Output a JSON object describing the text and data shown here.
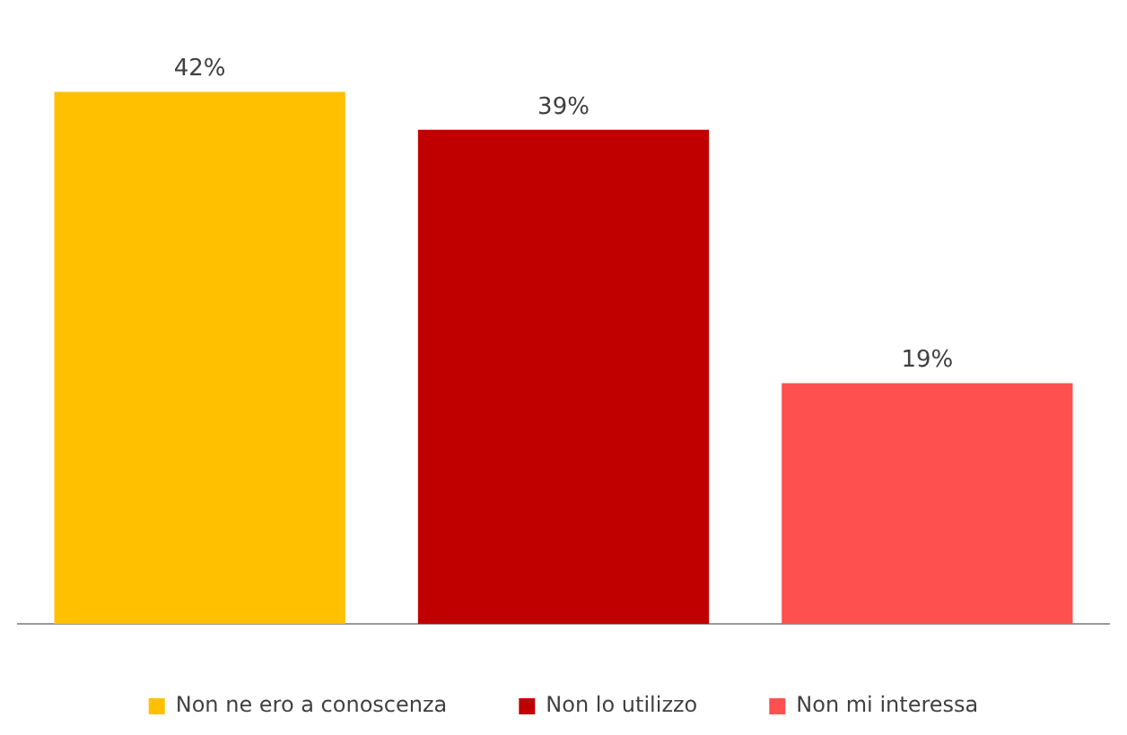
{
  "chart_data": {
    "type": "bar",
    "categories": [
      null
    ],
    "series": [
      {
        "name": "Non ne ero a conoscenza",
        "color": "#ffc000",
        "values": [
          42
        ],
        "value_labels": [
          "42%"
        ]
      },
      {
        "name": "Non lo utilizzo",
        "color": "#c00000",
        "values": [
          39
        ],
        "value_labels": [
          "39%"
        ]
      },
      {
        "name": "Non mi interessa",
        "color": "#ff5050",
        "values": [
          19
        ],
        "value_labels": [
          "19%"
        ]
      }
    ],
    "legend": "bottom",
    "grid": false,
    "tick_labels": false
  }
}
